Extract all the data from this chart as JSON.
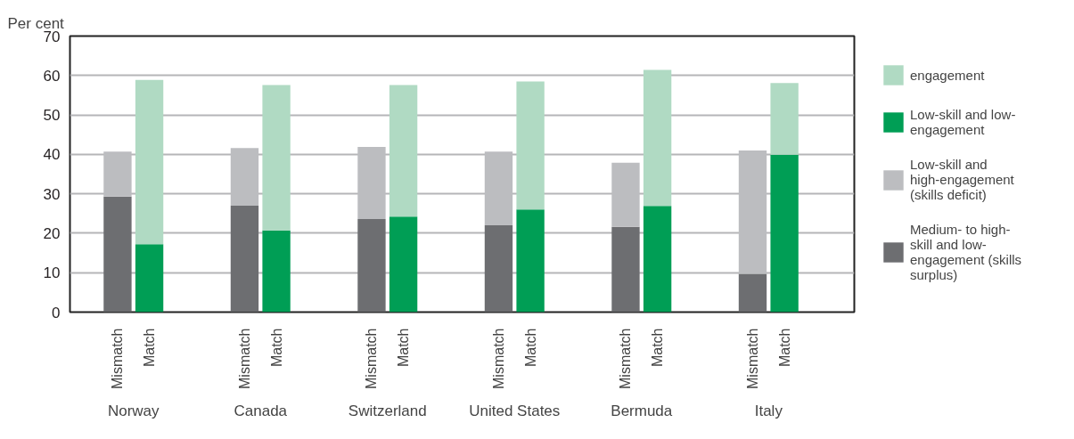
{
  "chart_data": {
    "type": "bar",
    "stacked": true,
    "ylabel": "Per cent",
    "categories": [
      "Mismatch",
      "Match",
      "Mismatch",
      "Match",
      "Mismatch",
      "Match",
      "Mismatch",
      "Match",
      "Mismatch",
      "Match",
      "Mismatch",
      "Match"
    ],
    "annotations": [
      "Norway",
      "Canada",
      "Switzerland",
      "United States",
      "Bermuda",
      "Italy"
    ],
    "series": [
      {
        "name": "Medium- to high-skill and low-engagement (skills surplus)",
        "color": "#6d6e71",
        "values": [
          29.3,
          null,
          27,
          null,
          23.6,
          null,
          22,
          null,
          21.6,
          null,
          9.7,
          null
        ]
      },
      {
        "name": "Low-skill and high-engagement (skills deficit)",
        "color": "#bcbdc0",
        "values": [
          11.4,
          null,
          14.6,
          null,
          18.3,
          null,
          18.7,
          null,
          16.3,
          null,
          31.3,
          null
        ]
      },
      {
        "name": "Low-skill and low-engagement",
        "color": "#009e55",
        "values": [
          null,
          17.2,
          null,
          20.7,
          null,
          24.2,
          null,
          26,
          null,
          26.9,
          null,
          39.9
        ]
      },
      {
        "name": "engagement",
        "color": "#b0dac3",
        "values": [
          null,
          41.7,
          null,
          36.9,
          null,
          33.4,
          null,
          32.5,
          null,
          34.5,
          null,
          18.2
        ]
      }
    ],
    "ylim": [
      0,
      70
    ],
    "yticks": [
      0,
      10,
      20,
      30,
      40,
      50,
      60,
      70
    ],
    "grid": "y",
    "legend": "right"
  }
}
